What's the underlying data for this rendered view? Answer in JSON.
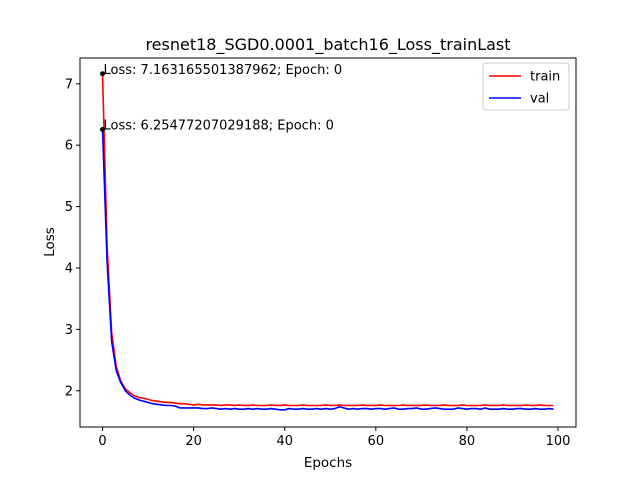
{
  "chart_data": {
    "type": "line",
    "title": "resnet18_SGD0.0001_batch16_Loss_trainLast",
    "xlabel": "Epochs",
    "ylabel": "Loss",
    "xlim": [
      -4.95,
      103.95
    ],
    "ylim": [
      1.41,
      7.42
    ],
    "xticks": [
      0,
      20,
      40,
      60,
      80,
      100
    ],
    "xtick_labels": [
      "0",
      "20",
      "40",
      "60",
      "80",
      "100"
    ],
    "yticks": [
      2,
      3,
      4,
      5,
      6,
      7
    ],
    "ytick_labels": [
      "2",
      "3",
      "4",
      "5",
      "6",
      "7"
    ],
    "grid": false,
    "legend_position": "top-right",
    "series": [
      {
        "name": "train",
        "color": "#ff0000",
        "x": [
          0,
          1,
          2,
          3,
          4,
          5,
          6,
          7,
          8,
          9,
          10,
          11,
          12,
          13,
          14,
          15,
          16,
          17,
          18,
          19,
          20,
          21,
          22,
          23,
          24,
          25,
          26,
          27,
          28,
          29,
          30,
          31,
          32,
          33,
          34,
          35,
          36,
          37,
          38,
          39,
          40,
          41,
          42,
          43,
          44,
          45,
          46,
          47,
          48,
          49,
          50,
          51,
          52,
          53,
          54,
          55,
          56,
          57,
          58,
          59,
          60,
          61,
          62,
          63,
          64,
          65,
          66,
          67,
          68,
          69,
          70,
          71,
          72,
          73,
          74,
          75,
          76,
          77,
          78,
          79,
          80,
          81,
          82,
          83,
          84,
          85,
          86,
          87,
          88,
          89,
          90,
          91,
          92,
          93,
          94,
          95,
          96,
          97,
          98,
          99
        ],
        "values": [
          7.16,
          4.35,
          2.95,
          2.4,
          2.16,
          2.03,
          1.97,
          1.92,
          1.89,
          1.88,
          1.86,
          1.84,
          1.83,
          1.82,
          1.81,
          1.81,
          1.8,
          1.79,
          1.79,
          1.78,
          1.77,
          1.78,
          1.77,
          1.77,
          1.77,
          1.77,
          1.76,
          1.77,
          1.77,
          1.76,
          1.77,
          1.76,
          1.76,
          1.77,
          1.76,
          1.76,
          1.76,
          1.77,
          1.76,
          1.76,
          1.77,
          1.76,
          1.76,
          1.76,
          1.77,
          1.76,
          1.76,
          1.76,
          1.76,
          1.77,
          1.76,
          1.76,
          1.77,
          1.76,
          1.76,
          1.76,
          1.76,
          1.77,
          1.76,
          1.76,
          1.76,
          1.77,
          1.76,
          1.76,
          1.76,
          1.76,
          1.77,
          1.76,
          1.76,
          1.76,
          1.76,
          1.77,
          1.76,
          1.76,
          1.76,
          1.77,
          1.76,
          1.76,
          1.76,
          1.77,
          1.76,
          1.76,
          1.76,
          1.76,
          1.77,
          1.76,
          1.76,
          1.76,
          1.77,
          1.76,
          1.76,
          1.76,
          1.76,
          1.77,
          1.76,
          1.76,
          1.77,
          1.76,
          1.76,
          1.76
        ]
      },
      {
        "name": "val",
        "color": "#0000ff",
        "x": [
          0,
          1,
          2,
          3,
          4,
          5,
          6,
          7,
          8,
          9,
          10,
          11,
          12,
          13,
          14,
          15,
          16,
          17,
          18,
          19,
          20,
          21,
          22,
          23,
          24,
          25,
          26,
          27,
          28,
          29,
          30,
          31,
          32,
          33,
          34,
          35,
          36,
          37,
          38,
          39,
          40,
          41,
          42,
          43,
          44,
          45,
          46,
          47,
          48,
          49,
          50,
          51,
          52,
          53,
          54,
          55,
          56,
          57,
          58,
          59,
          60,
          61,
          62,
          63,
          64,
          65,
          66,
          67,
          68,
          69,
          70,
          71,
          72,
          73,
          74,
          75,
          76,
          77,
          78,
          79,
          80,
          81,
          82,
          83,
          84,
          85,
          86,
          87,
          88,
          89,
          90,
          91,
          92,
          93,
          94,
          95,
          96,
          97,
          98,
          99
        ],
        "values": [
          6.25,
          4.1,
          2.8,
          2.33,
          2.13,
          2.0,
          1.93,
          1.88,
          1.85,
          1.83,
          1.81,
          1.79,
          1.78,
          1.77,
          1.76,
          1.76,
          1.75,
          1.72,
          1.72,
          1.72,
          1.72,
          1.72,
          1.71,
          1.71,
          1.72,
          1.71,
          1.7,
          1.71,
          1.7,
          1.71,
          1.7,
          1.7,
          1.71,
          1.7,
          1.71,
          1.7,
          1.7,
          1.71,
          1.7,
          1.69,
          1.69,
          1.71,
          1.7,
          1.7,
          1.71,
          1.7,
          1.7,
          1.71,
          1.7,
          1.71,
          1.7,
          1.71,
          1.74,
          1.72,
          1.7,
          1.71,
          1.7,
          1.71,
          1.71,
          1.7,
          1.71,
          1.71,
          1.7,
          1.71,
          1.72,
          1.7,
          1.7,
          1.71,
          1.71,
          1.72,
          1.7,
          1.7,
          1.71,
          1.72,
          1.71,
          1.7,
          1.7,
          1.7,
          1.72,
          1.71,
          1.7,
          1.71,
          1.71,
          1.7,
          1.72,
          1.7,
          1.7,
          1.7,
          1.71,
          1.7,
          1.7,
          1.71,
          1.71,
          1.7,
          1.7,
          1.71,
          1.7,
          1.7,
          1.71,
          1.7
        ]
      }
    ],
    "annotations": [
      {
        "text": "Loss: 7.163165501387962; Epoch: 0",
        "x": 0,
        "y": 7.163165501387962
      },
      {
        "text": "Loss: 6.25477207029188; Epoch: 0",
        "x": 0,
        "y": 6.25477207029188
      }
    ]
  }
}
